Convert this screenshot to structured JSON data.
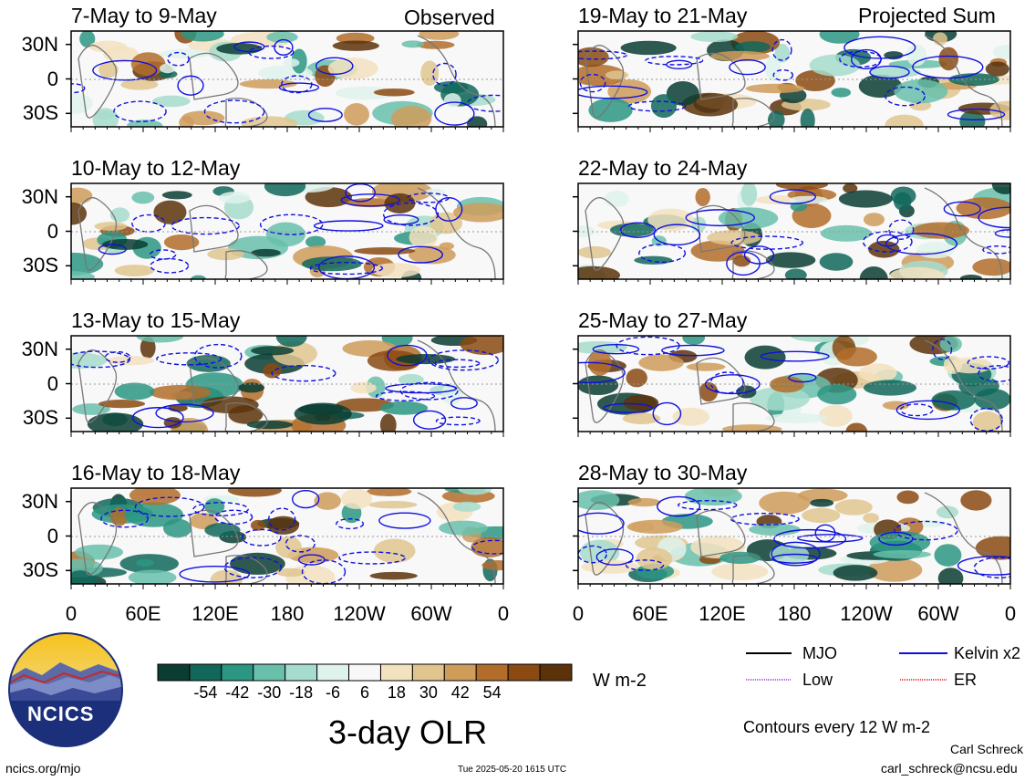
{
  "chart_data": {
    "type": "heatmap",
    "title": "3-day OLR",
    "units": "W m-2",
    "panels": [
      {
        "label": "7-May to 9-May",
        "tag": "Observed"
      },
      {
        "label": "10-May to 12-May",
        "tag": ""
      },
      {
        "label": "13-May to 15-May",
        "tag": ""
      },
      {
        "label": "16-May to 18-May",
        "tag": ""
      },
      {
        "label": "19-May to 21-May",
        "tag": "Projected Sum"
      },
      {
        "label": "22-May to 24-May",
        "tag": ""
      },
      {
        "label": "25-May to 27-May",
        "tag": ""
      },
      {
        "label": "28-May to 30-May",
        "tag": ""
      }
    ],
    "y_ticks": [
      "30N",
      "0",
      "30S"
    ],
    "x_ticks": [
      "0",
      "60E",
      "120E",
      "180",
      "120W",
      "60W",
      "0"
    ],
    "colorbar": {
      "ticks": [
        "-54",
        "-42",
        "-30",
        "-18",
        "-6",
        "6",
        "18",
        "30",
        "42",
        "54"
      ],
      "colors": [
        "#0b3d33",
        "#11675a",
        "#2b9682",
        "#68c0ab",
        "#a6dccd",
        "#dff2ec",
        "#f8f8f8",
        "#f3e2bf",
        "#e1c58f",
        "#cf9c5a",
        "#b36d2b",
        "#8b4a12",
        "#5c320b"
      ]
    },
    "legend": [
      {
        "name": "MJO",
        "color": "#000000"
      },
      {
        "name": "Kelvin x2",
        "color": "#1010e0"
      },
      {
        "name": "Low",
        "color": "#9a30e0"
      },
      {
        "name": "ER",
        "color": "#e01010"
      }
    ],
    "contour_note": "Contours every 12 W m-2"
  },
  "footer": {
    "logo_text": "NCICS",
    "url": "ncics.org/mjo",
    "timestamp": "Tue 2025-05-20 1615 UTC",
    "author": "Carl Schreck",
    "email": "carl_schreck@ncsu.edu"
  }
}
